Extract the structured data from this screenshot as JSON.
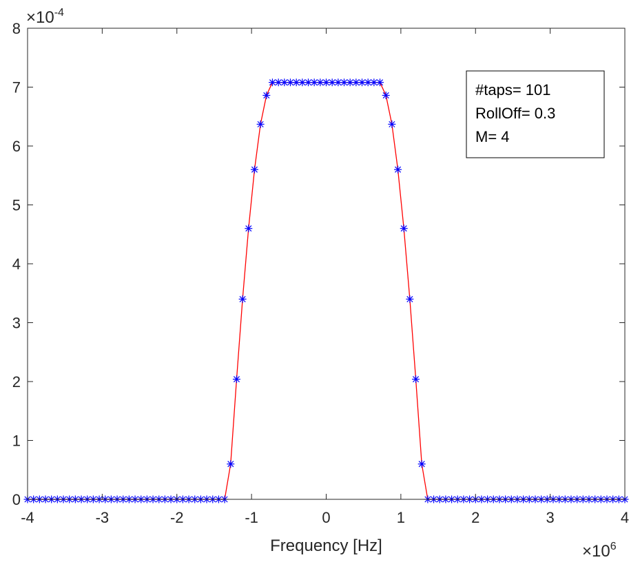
{
  "chart_data": {
    "type": "line",
    "xlabel": "Frequency [Hz]",
    "ylabel": "",
    "x_exponent_label": {
      "base": "×10",
      "power": "6"
    },
    "y_exponent_label": {
      "base": "×10",
      "power": "-4"
    },
    "x_scale_factor": 1000000,
    "y_scale_factor": 0.0001,
    "xlim": [
      -4000000,
      4000000
    ],
    "ylim": [
      0,
      0.0008
    ],
    "xticks": [
      -4000000,
      -3000000,
      -2000000,
      -1000000,
      0,
      1000000,
      2000000,
      3000000,
      4000000
    ],
    "xtick_labels": [
      "-4",
      "-3",
      "-2",
      "-1",
      "0",
      "1",
      "2",
      "3",
      "4"
    ],
    "yticks": [
      0,
      0.0001,
      0.0002,
      0.0003,
      0.0004,
      0.0005,
      0.0006,
      0.0007,
      0.0008
    ],
    "ytick_labels": [
      "0",
      "1",
      "2",
      "3",
      "4",
      "5",
      "6",
      "7",
      "8"
    ],
    "grid": false,
    "box": true,
    "annotation": [
      "#taps= 101",
      "RollOff= 0.3",
      "M= 4"
    ],
    "annotation_position": "top-right",
    "x": [
      -4000000,
      -3920000,
      -3840000,
      -3760000,
      -3680000,
      -3600000,
      -3520000,
      -3440000,
      -3360000,
      -3280000,
      -3200000,
      -3120000,
      -3040000,
      -2960000,
      -2880000,
      -2800000,
      -2720000,
      -2640000,
      -2560000,
      -2480000,
      -2400000,
      -2320000,
      -2240000,
      -2160000,
      -2080000,
      -2000000,
      -1920000,
      -1840000,
      -1760000,
      -1680000,
      -1600000,
      -1520000,
      -1440000,
      -1360000,
      -1280000,
      -1200000,
      -1120000,
      -1040000,
      -960000,
      -880000,
      -800000,
      -720000,
      -640000,
      -560000,
      -480000,
      -400000,
      -320000,
      -240000,
      -160000,
      -80000,
      0,
      80000,
      160000,
      240000,
      320000,
      400000,
      480000,
      560000,
      640000,
      720000,
      800000,
      880000,
      960000,
      1040000,
      1120000,
      1200000,
      1280000,
      1360000,
      1440000,
      1520000,
      1600000,
      1680000,
      1760000,
      1840000,
      1920000,
      2000000,
      2080000,
      2160000,
      2240000,
      2320000,
      2400000,
      2480000,
      2560000,
      2640000,
      2720000,
      2800000,
      2880000,
      2960000,
      3040000,
      3120000,
      3200000,
      3280000,
      3360000,
      3440000,
      3520000,
      3600000,
      3680000,
      3760000,
      3840000,
      3920000,
      4000000
    ],
    "series": [
      {
        "color": "#ff0000",
        "style": "line",
        "values": [
          0,
          0,
          0,
          0,
          0,
          0,
          0,
          0,
          0,
          0,
          0,
          0,
          0,
          0,
          0,
          0,
          0,
          0,
          0,
          0,
          0,
          0,
          0,
          0,
          0,
          0,
          0,
          0,
          0,
          0,
          0,
          0,
          0,
          0,
          6e-05,
          0.000204,
          0.00034,
          0.00046,
          0.00056,
          0.000637,
          0.000686,
          0.000708,
          0.000708,
          0.000708,
          0.000708,
          0.000708,
          0.000708,
          0.000708,
          0.000708,
          0.000708,
          0.000708,
          0.000708,
          0.000708,
          0.000708,
          0.000708,
          0.000708,
          0.000708,
          0.000708,
          0.000708,
          0.000708,
          0.000686,
          0.000637,
          0.00056,
          0.00046,
          0.00034,
          0.000204,
          6e-05,
          0,
          0,
          0,
          0,
          0,
          0,
          0,
          0,
          0,
          0,
          0,
          0,
          0,
          0,
          0,
          0,
          0,
          0,
          0,
          0,
          0,
          0,
          0,
          0,
          0,
          0,
          0,
          0,
          0,
          0,
          0,
          0,
          0,
          0
        ]
      },
      {
        "color": "#0000ff",
        "style": "markers",
        "marker": "*",
        "values": [
          0,
          0,
          0,
          0,
          0,
          0,
          0,
          0,
          0,
          0,
          0,
          0,
          0,
          0,
          0,
          0,
          0,
          0,
          0,
          0,
          0,
          0,
          0,
          0,
          0,
          0,
          0,
          0,
          0,
          0,
          0,
          0,
          0,
          0,
          6e-05,
          0.000204,
          0.00034,
          0.00046,
          0.00056,
          0.000637,
          0.000686,
          0.000708,
          0.000708,
          0.000708,
          0.000708,
          0.000708,
          0.000708,
          0.000708,
          0.000708,
          0.000708,
          0.000708,
          0.000708,
          0.000708,
          0.000708,
          0.000708,
          0.000708,
          0.000708,
          0.000708,
          0.000708,
          0.000708,
          0.000686,
          0.000637,
          0.00056,
          0.00046,
          0.00034,
          0.000204,
          6e-05,
          0,
          0,
          0,
          0,
          0,
          0,
          0,
          0,
          0,
          0,
          0,
          0,
          0,
          0,
          0,
          0,
          0,
          0,
          0,
          0,
          0,
          0,
          0,
          0,
          0,
          0,
          0,
          0,
          0,
          0,
          0,
          0,
          0,
          0
        ]
      }
    ]
  }
}
